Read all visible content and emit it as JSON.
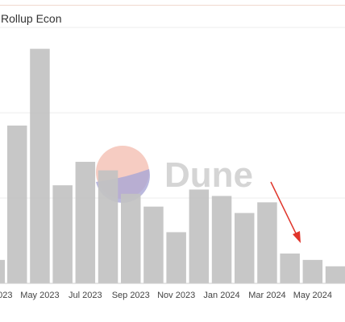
{
  "title": "Rollup Econ",
  "watermark": "Dune",
  "colors": {
    "bar": "#c2c2c2",
    "bar_stroke": "#b9b9b9",
    "grid": "#eeeeee",
    "axis": "#cccccc",
    "arrow": "#e0352b",
    "logo_top": "#f2b7a8",
    "logo_bottom": "#a9a6d6"
  },
  "chart_data": {
    "type": "bar",
    "title": "Rollup Econ",
    "xlabel": "",
    "ylabel": "",
    "grid": true,
    "legend": "none",
    "categories": [
      "2023-03",
      "2023-04",
      "2023-05",
      "2023-06",
      "2023-07",
      "2023-08",
      "2023-09",
      "2023-10",
      "2023-11",
      "2023-12",
      "2024-01",
      "2024-02",
      "2024-03",
      "2024-04",
      "2024-05",
      "2024-06"
    ],
    "values": [
      96,
      74,
      110,
      46,
      57,
      53,
      42,
      36,
      24,
      44,
      41,
      33,
      38,
      14,
      11,
      8
    ],
    "x_tick_labels": [
      {
        "category_index": 0,
        "label": "2023"
      },
      {
        "category_index": 2,
        "label": "May 2023"
      },
      {
        "category_index": 4,
        "label": "Jul 2023"
      },
      {
        "category_index": 6,
        "label": "Sep 2023"
      },
      {
        "category_index": 8,
        "label": "Nov 2023"
      },
      {
        "category_index": 10,
        "label": "Jan 2024"
      },
      {
        "category_index": 12,
        "label": "Mar 2024"
      },
      {
        "category_index": 14,
        "label": "May 2024"
      }
    ],
    "ylim": [
      0,
      120
    ],
    "gridlines": [
      0,
      40,
      80,
      120
    ],
    "partial_bar": {
      "category_index": 0,
      "value": 11
    },
    "annotation": {
      "type": "arrow",
      "points_to_category_index": 13
    }
  }
}
